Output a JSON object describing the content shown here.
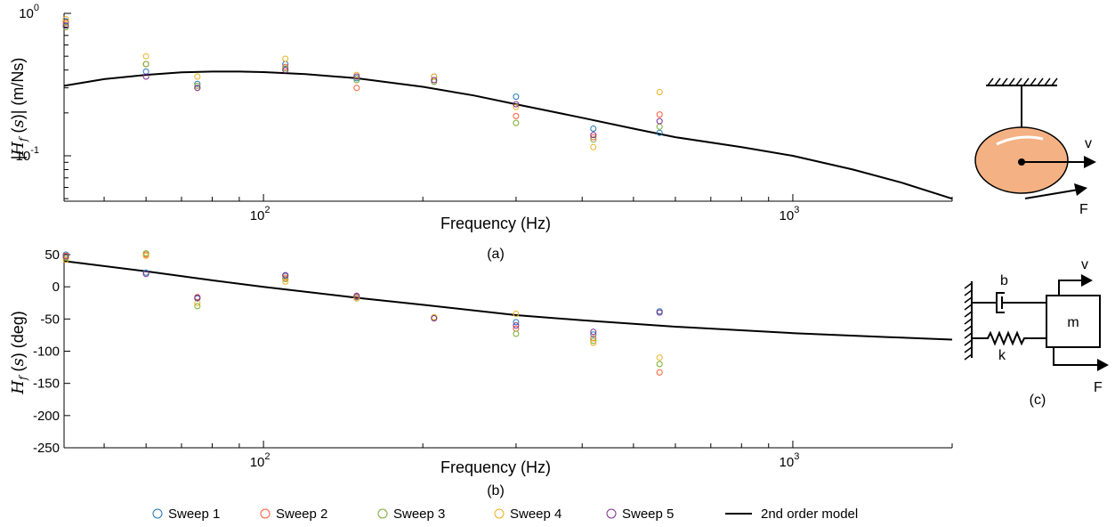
{
  "colors": {
    "sweep1": "#1f77b4",
    "sweep2": "#ff5a36",
    "sweep3": "#77ac30",
    "sweep4": "#edb120",
    "sweep5": "#7e2f8e",
    "model": "#000000",
    "mass_fill": "#f4b183"
  },
  "chart_data": [
    {
      "panel_label": "(a)",
      "type": "scatter",
      "xscale": "log",
      "yscale": "log",
      "xlim": [
        42,
        2000
      ],
      "ylim": [
        0.048,
        1.0
      ],
      "xlabel": "Frequency (Hz)",
      "ylabel": "|H_f (s)| (m/Ns)",
      "xticks": [
        {
          "value": 100,
          "base": "10",
          "exp": "2"
        },
        {
          "value": 1000,
          "base": "10",
          "exp": "3"
        }
      ],
      "yticks": [
        {
          "value": 0.1,
          "base": "10",
          "exp": "-1"
        },
        {
          "value": 1.0,
          "base": "10",
          "exp": "0"
        }
      ],
      "x": [
        42,
        60,
        75,
        110,
        150,
        210,
        300,
        420,
        560
      ],
      "series": [
        {
          "name": "Sweep 1",
          "color_key": "sweep1",
          "values": [
            0.88,
            0.39,
            0.32,
            0.44,
            0.35,
            0.36,
            0.26,
            0.155,
            0.145
          ]
        },
        {
          "name": "Sweep 2",
          "color_key": "sweep2",
          "values": [
            0.86,
            0.44,
            0.3,
            0.42,
            0.3,
            0.34,
            0.19,
            0.135,
            0.195
          ]
        },
        {
          "name": "Sweep 3",
          "color_key": "sweep3",
          "values": [
            0.8,
            0.44,
            0.31,
            0.41,
            0.34,
            0.33,
            0.17,
            0.13,
            0.16
          ]
        },
        {
          "name": "Sweep 4",
          "color_key": "sweep4",
          "values": [
            0.91,
            0.5,
            0.36,
            0.48,
            0.37,
            0.36,
            0.22,
            0.115,
            0.28
          ]
        },
        {
          "name": "Sweep 5",
          "color_key": "sweep5",
          "values": [
            0.82,
            0.36,
            0.3,
            0.4,
            0.36,
            0.34,
            0.23,
            0.14,
            0.175
          ]
        }
      ],
      "model": {
        "name": "2nd order model",
        "type": "line",
        "x": [
          42,
          50,
          60,
          70,
          80,
          90,
          100,
          120,
          150,
          200,
          250,
          300,
          400,
          500,
          600,
          800,
          1000,
          1300,
          1600,
          2000
        ],
        "values": [
          0.31,
          0.345,
          0.37,
          0.385,
          0.39,
          0.39,
          0.387,
          0.375,
          0.35,
          0.305,
          0.265,
          0.23,
          0.185,
          0.155,
          0.135,
          0.115,
          0.1,
          0.08,
          0.065,
          0.05
        ]
      }
    },
    {
      "panel_label": "(b)",
      "type": "scatter",
      "xscale": "log",
      "yscale": "linear",
      "xlim": [
        42,
        2000
      ],
      "ylim": [
        -250,
        50
      ],
      "xlabel": "Frequency (Hz)",
      "ylabel": "H_f (s) (deg)",
      "xticks": [
        {
          "value": 100,
          "base": "10",
          "exp": "2"
        },
        {
          "value": 1000,
          "base": "10",
          "exp": "3"
        }
      ],
      "yticks": [
        50,
        0,
        -50,
        -100,
        -150,
        -200,
        -250
      ],
      "ytick_labels": [
        "50",
        "0",
        "-50",
        "-100",
        "-150",
        "-200",
        "-250"
      ],
      "x": [
        42,
        60,
        75,
        110,
        150,
        210,
        300,
        420,
        560
      ],
      "series": [
        {
          "name": "Sweep 1",
          "color_key": "sweep1",
          "values": [
            50,
            22,
            -18,
            17,
            -16,
            -48,
            -55,
            -74,
            -38
          ]
        },
        {
          "name": "Sweep 2",
          "color_key": "sweep2",
          "values": [
            48,
            50,
            -16,
            14,
            -15,
            -48,
            -65,
            -80,
            -133
          ]
        },
        {
          "name": "Sweep 3",
          "color_key": "sweep3",
          "values": [
            45,
            52,
            -30,
            12,
            -18,
            -48,
            -73,
            -84,
            -120
          ]
        },
        {
          "name": "Sweep 4",
          "color_key": "sweep4",
          "values": [
            42,
            48,
            -25,
            8,
            -18,
            -47,
            -42,
            -87,
            -110
          ]
        },
        {
          "name": "Sweep 5",
          "color_key": "sweep5",
          "values": [
            47,
            20,
            -17,
            18,
            -14,
            -49,
            -60,
            -70,
            -40
          ]
        }
      ],
      "model": {
        "name": "2nd order model",
        "type": "line",
        "x": [
          42,
          60,
          80,
          100,
          150,
          200,
          300,
          400,
          600,
          1000,
          1500,
          2000
        ],
        "values": [
          40,
          24,
          10,
          0,
          -17,
          -28,
          -44,
          -52,
          -62,
          -72,
          -78,
          -82
        ]
      }
    }
  ],
  "legend": [
    {
      "label": "Sweep 1",
      "color_key": "sweep1",
      "kind": "marker"
    },
    {
      "label": "Sweep 2",
      "color_key": "sweep2",
      "kind": "marker"
    },
    {
      "label": "Sweep 3",
      "color_key": "sweep3",
      "kind": "marker"
    },
    {
      "label": "Sweep 4",
      "color_key": "sweep4",
      "kind": "marker"
    },
    {
      "label": "Sweep 5",
      "color_key": "sweep5",
      "kind": "marker"
    },
    {
      "label": "2nd order model",
      "color_key": "model",
      "kind": "line"
    }
  ],
  "diagram": {
    "top": {
      "v_label": "v",
      "f_label": "F"
    },
    "bottom": {
      "b_label": "b",
      "k_label": "k",
      "m_label": "m",
      "v_label": "v",
      "f_label": "F",
      "panel_label": "(c)"
    }
  }
}
